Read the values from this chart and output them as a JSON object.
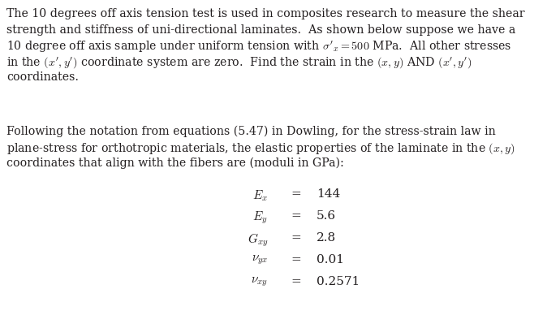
{
  "bg_color": "#ffffff",
  "text_color": "#231f20",
  "para1_lines": [
    "The 10 degrees off axis tension test is used in composites research to measure the shear",
    "strength and stiffness of uni-directional laminates.  As shown below suppose we have a",
    "10 degree off axis sample under uniform tension with $\\sigma'_x = 500$ MPa.  All other stresses",
    "in the $(x', y')$ coordinate system are zero.  Find the strain in the $(x, y)$ AND $(x', y')$",
    "coordinates."
  ],
  "para2_lines": [
    "Following the notation from equations (5.47) in Dowling, for the stress-strain law in",
    "plane-stress for orthotropic materials, the elastic properties of the laminate in the $(x, y)$",
    "coordinates that align with the fibers are (moduli in GPa):"
  ],
  "equations": [
    [
      "$E_x$",
      "=",
      "144"
    ],
    [
      "$E_y$",
      "=",
      "5.6"
    ],
    [
      "$G_{xy}$",
      "=",
      "2.8"
    ],
    [
      "$\\nu_{yx}$",
      "=",
      "0.01"
    ],
    [
      "$\\nu_{xy}$",
      "=",
      "0.2571"
    ]
  ],
  "fontsize_body": 10.2,
  "fontsize_eq": 11.0,
  "fig_width": 6.9,
  "fig_height": 3.88,
  "dpi": 100
}
